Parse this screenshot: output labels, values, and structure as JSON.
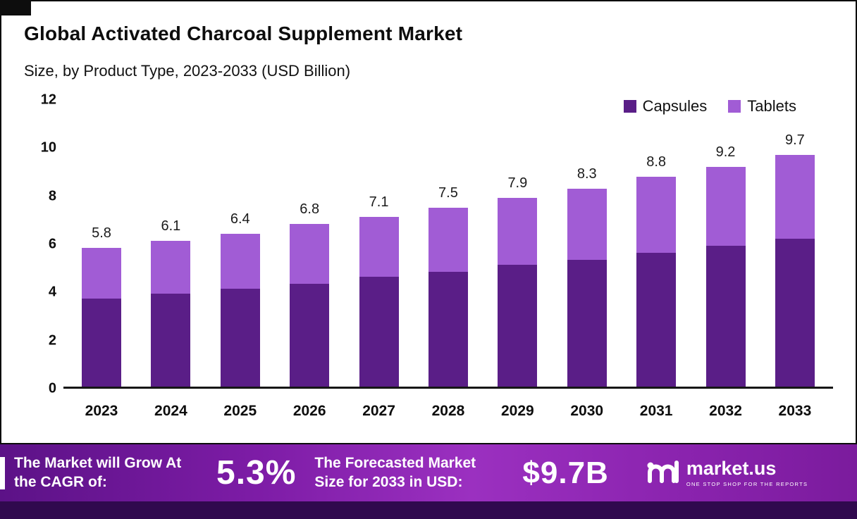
{
  "title": "Global Activated Charcoal Supplement Market",
  "subtitle": "Size, by Product Type, 2023-2033 (USD Billion)",
  "chart_data": {
    "type": "bar",
    "stacked": true,
    "title": "Global Activated Charcoal Supplement Market Size, by Product Type, 2023-2033 (USD Billion)",
    "categories": [
      "2023",
      "2024",
      "2025",
      "2026",
      "2027",
      "2028",
      "2029",
      "2030",
      "2031",
      "2032",
      "2033"
    ],
    "series": [
      {
        "name": "Capsules",
        "color": "#5a1e87",
        "values": [
          3.7,
          3.9,
          4.1,
          4.3,
          4.6,
          4.8,
          5.1,
          5.3,
          5.6,
          5.9,
          6.2
        ]
      },
      {
        "name": "Tablets",
        "color": "#a15cd5",
        "values": [
          2.1,
          2.2,
          2.3,
          2.5,
          2.5,
          2.7,
          2.8,
          3.0,
          3.2,
          3.3,
          3.5
        ]
      }
    ],
    "totals": [
      "5.8",
      "6.1",
      "6.4",
      "6.8",
      "7.1",
      "7.5",
      "7.9",
      "8.3",
      "8.8",
      "9.2",
      "9.7"
    ],
    "xlabel": "",
    "ylabel": "",
    "ylim": [
      0,
      12
    ],
    "yticks": [
      0,
      2,
      4,
      6,
      8,
      10,
      12
    ],
    "grid": false,
    "legend_position": "top-right"
  },
  "banner": {
    "cagr_label": "The Market will Grow At the CAGR of:",
    "cagr_value": "5.3%",
    "forecast_label": "The Forecasted Market Size for 2033 in USD:",
    "forecast_value": "$9.7B",
    "brand_name": "market.us",
    "brand_tagline": "ONE STOP SHOP FOR THE REPORTS"
  },
  "colors": {
    "capsules": "#5a1e87",
    "tablets": "#a15cd5",
    "banner_dark": "#5c1287",
    "banner_light": "#9b30c0",
    "strip": "#30094e",
    "text": "#0d0d0d"
  }
}
